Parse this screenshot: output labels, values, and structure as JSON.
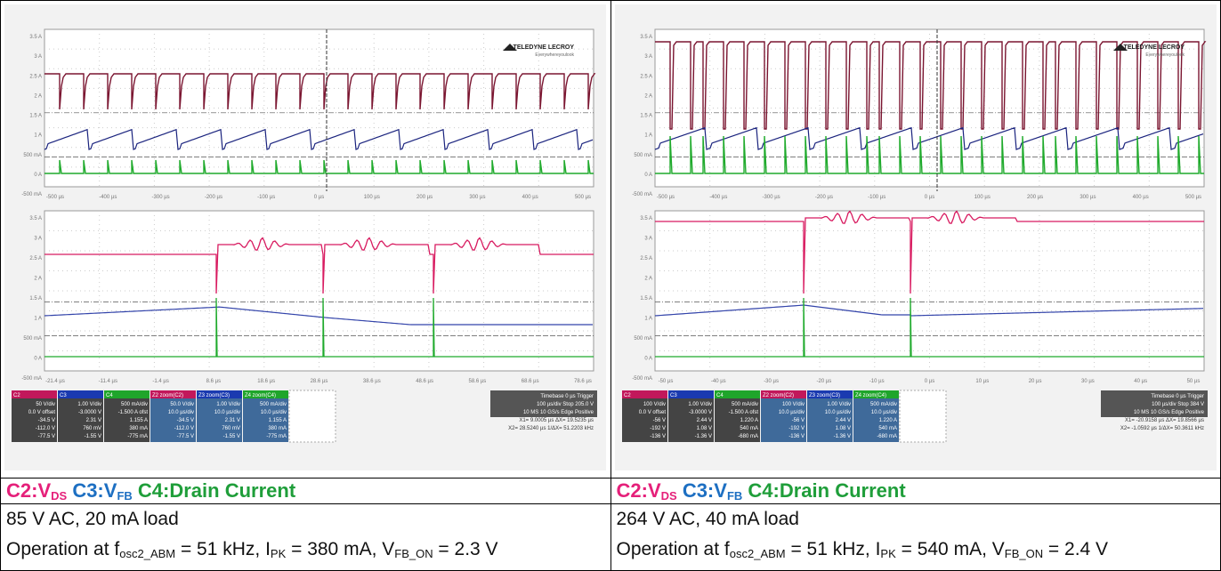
{
  "panels": [
    {
      "scope": {
        "top_y_labels": [
          "3.5 A",
          "3 A",
          "2.5 A",
          "2 A",
          "1.5 A",
          "1 A",
          "500 mA",
          "0 A",
          "-500 mA"
        ],
        "top_x_labels": [
          "-500 µs",
          "-400 µs",
          "-300 µs",
          "-200 µs",
          "-100 µs",
          "0 µs",
          "100 µs",
          "200 µs",
          "300 µs",
          "400 µs",
          "500 µs"
        ],
        "zoom_y_labels": [
          "3.5 A",
          "3 A",
          "2.5 A",
          "2 A",
          "1.5 A",
          "1 A",
          "500 mA",
          "0 A",
          "-500 mA"
        ],
        "zoom_x_labels": [
          "-21.4 µs",
          "-11.4 µs",
          "-1.4 µs",
          "8.6 µs",
          "18.6 µs",
          "28.6 µs",
          "38.6 µs",
          "48.6 µs",
          "58.6 µs",
          "68.6 µs",
          "78.6 µs"
        ],
        "logo": [
          "TELEDYNE LECROY",
          "Everywhereyoulook"
        ],
        "channels": [
          {
            "head": "C2",
            "lines": [
              "50 V/div",
              "0.0 V offset",
              "-34.5 V",
              "-112.0 V",
              "-77.5 V"
            ]
          },
          {
            "head": "C3",
            "lines": [
              "1.00 V/div",
              "-3.0000 V",
              "2.31 V",
              "760 mV",
              "-1.55 V"
            ]
          },
          {
            "head": "C4",
            "lines": [
              "500 mA/div",
              "-1.500 A ofst",
              "1.155 A",
              "380 mA",
              "-775 mA"
            ]
          },
          {
            "head": "Z2 zoom(C2)",
            "lines": [
              "50.0 V/div",
              "10.0 µs/div",
              "-34.5 V",
              "-112.0 V",
              "-77.5 V"
            ]
          },
          {
            "head": "Z3 zoom(C3)",
            "lines": [
              "1.00 V/div",
              "10.0 µs/div",
              "2.31 V",
              "760 mV",
              "-1.55 V"
            ]
          },
          {
            "head": "Z4 zoom(C4)",
            "lines": [
              "500 mA/div",
              "10.0 µs/div",
              "1.155 A",
              "380 mA",
              "-775 mA"
            ]
          }
        ],
        "timebase": [
          "Timebase 0 µs  Trigger",
          "100 µs/div  Stop  205.0 V",
          "10 MS  10 GS/s  Edge  Positive",
          "X1= 9.0005 µs  ΔX= 19.5235 µs",
          "X2= 28.5240 µs  1/ΔX= 51.2203 kHz"
        ]
      },
      "legend": {
        "c2": "C2:V",
        "c2_sub": "DS",
        "c3": "C3:V",
        "c3_sub": "FB",
        "c4": "C4:Drain Current"
      },
      "condition": "85 V AC, 20 mA load",
      "operation": [
        {
          "t": "Operation at f"
        },
        {
          "sub": "osc2_ABM"
        },
        {
          "t": " = 51 kHz, I"
        },
        {
          "sub": "PK"
        },
        {
          "t": " = 380 mA, V"
        },
        {
          "sub": "FB_ON"
        },
        {
          "t": " = 2.3 V"
        }
      ]
    },
    {
      "scope": {
        "top_y_labels": [
          "3.5 A",
          "3 A",
          "2.5 A",
          "2 A",
          "1.5 A",
          "1 A",
          "500 mA",
          "0 A",
          "-500 mA"
        ],
        "top_x_labels": [
          "-500 µs",
          "-400 µs",
          "-300 µs",
          "-200 µs",
          "-100 µs",
          "0 µs",
          "100 µs",
          "200 µs",
          "300 µs",
          "400 µs",
          "500 µs"
        ],
        "zoom_y_labels": [
          "3.5 A",
          "3 A",
          "2.5 A",
          "2 A",
          "1.5 A",
          "1 A",
          "500 mA",
          "0 A",
          "-500 mA"
        ],
        "zoom_x_labels": [
          "-50 µs",
          "-40 µs",
          "-30 µs",
          "-20 µs",
          "-10 µs",
          "0 µs",
          "10 µs",
          "20 µs",
          "30 µs",
          "40 µs",
          "50 µs"
        ],
        "logo": [
          "TELEDYNE LECROY",
          "Everywhereyoulook"
        ],
        "channels": [
          {
            "head": "C2",
            "lines": [
              "100 V/div",
              "0.0 V offset",
              "-56 V",
              "-192 V",
              "-136 V"
            ]
          },
          {
            "head": "C3",
            "lines": [
              "1.00 V/div",
              "-3.0000 V",
              "2.44 V",
              "1.08 V",
              "-1.36 V"
            ]
          },
          {
            "head": "C4",
            "lines": [
              "500 mA/div",
              "-1.500 A ofst",
              "1.220 A",
              "540 mA",
              "-680 mA"
            ]
          },
          {
            "head": "Z2 zoom(C2)",
            "lines": [
              "100 V/div",
              "10.0 µs/div",
              "-56 V",
              "-192 V",
              "-136 V"
            ]
          },
          {
            "head": "Z3 zoom(C3)",
            "lines": [
              "1.00 V/div",
              "10.0 µs/div",
              "2.44 V",
              "1.08 V",
              "-1.36 V"
            ]
          },
          {
            "head": "Z4 zoom(C4)",
            "lines": [
              "500 mA/div",
              "10.0 µs/div",
              "1.220 A",
              "540 mA",
              "-680 mA"
            ]
          }
        ],
        "timebase": [
          "Timebase 0 µs  Trigger",
          "100 µs/div  Stop  384 V",
          "10 MS  10 GS/s  Edge  Positive",
          "X1= -20.9158 µs  ΔX= 19.8566 µs",
          "X2= -1.0592 µs  1/ΔX= 50.3611 kHz"
        ]
      },
      "legend": {
        "c2": "C2:V",
        "c2_sub": "DS",
        "c3": "C3:V",
        "c3_sub": "FB",
        "c4": "C4:Drain Current"
      },
      "condition": "264 V AC, 40 mA load",
      "operation": [
        {
          "t": "Operation at f"
        },
        {
          "sub": "osc2_ABM"
        },
        {
          "t": " = 51 kHz, I"
        },
        {
          "sub": "PK"
        },
        {
          "t": " = 540 mA, V"
        },
        {
          "sub": "FB_ON"
        },
        {
          "t": " = 2.4 V"
        }
      ]
    }
  ]
}
